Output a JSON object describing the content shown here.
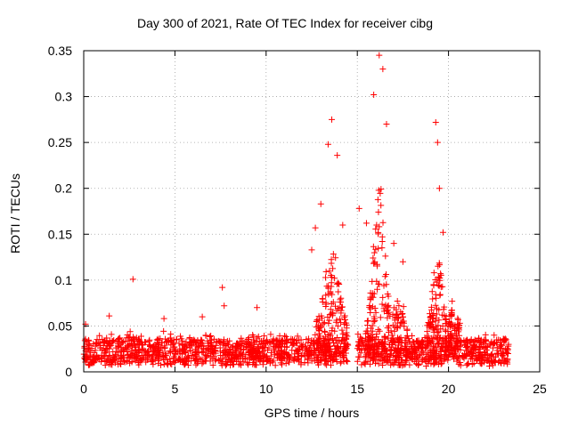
{
  "chart_data": {
    "type": "scatter",
    "title": "Day 300 of 2021, Rate Of TEC Index for receiver cibg",
    "xlabel": "GPS time / hours",
    "ylabel": "ROTI / TECUs",
    "xlim": [
      0,
      25
    ],
    "ylim": [
      0,
      0.35
    ],
    "xticks": [
      0,
      5,
      10,
      15,
      20,
      25
    ],
    "yticks": [
      0,
      0.05,
      0.1,
      0.15,
      0.2,
      0.25,
      0.3,
      0.35
    ],
    "xtick_labels": [
      "0",
      "5",
      "10",
      "15",
      "20",
      "25"
    ],
    "ytick_labels": [
      "0",
      "0.05",
      "0.1",
      "0.15",
      "0.2",
      "0.25",
      "0.3",
      "0.35"
    ],
    "grid": true,
    "marker": "+",
    "color": "#ff0000",
    "data_gap": [
      14.5,
      15.0
    ],
    "x_range_of_data": [
      0,
      23.3
    ],
    "series": [
      {
        "name": "ROTI",
        "notable_points": [
          {
            "x": 0.1,
            "y": 0.052
          },
          {
            "x": 1.4,
            "y": 0.061
          },
          {
            "x": 2.7,
            "y": 0.101
          },
          {
            "x": 4.4,
            "y": 0.058
          },
          {
            "x": 6.5,
            "y": 0.06
          },
          {
            "x": 7.6,
            "y": 0.092
          },
          {
            "x": 7.7,
            "y": 0.072
          },
          {
            "x": 9.5,
            "y": 0.07
          },
          {
            "x": 12.5,
            "y": 0.133
          },
          {
            "x": 12.7,
            "y": 0.157
          },
          {
            "x": 13.0,
            "y": 0.183
          },
          {
            "x": 13.4,
            "y": 0.248
          },
          {
            "x": 13.6,
            "y": 0.275
          },
          {
            "x": 13.9,
            "y": 0.236
          },
          {
            "x": 14.2,
            "y": 0.16
          },
          {
            "x": 15.1,
            "y": 0.178
          },
          {
            "x": 15.5,
            "y": 0.162
          },
          {
            "x": 15.9,
            "y": 0.302
          },
          {
            "x": 16.2,
            "y": 0.345
          },
          {
            "x": 16.4,
            "y": 0.33
          },
          {
            "x": 16.6,
            "y": 0.27
          },
          {
            "x": 17.0,
            "y": 0.14
          },
          {
            "x": 17.5,
            "y": 0.12
          },
          {
            "x": 19.3,
            "y": 0.272
          },
          {
            "x": 19.4,
            "y": 0.25
          },
          {
            "x": 19.5,
            "y": 0.2
          },
          {
            "x": 19.7,
            "y": 0.152
          },
          {
            "x": 20.2,
            "y": 0.077
          },
          {
            "x": 22.5,
            "y": 0.04
          }
        ]
      }
    ]
  }
}
